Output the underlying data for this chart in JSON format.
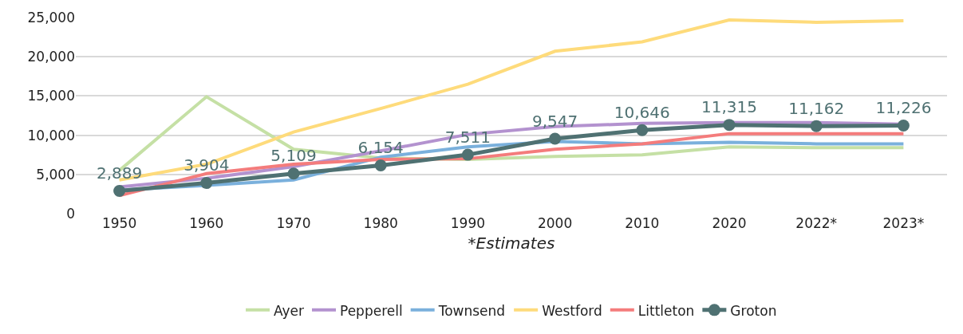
{
  "chart_data": {
    "type": "line",
    "categories": [
      "1950",
      "1960",
      "1970",
      "1980",
      "1990",
      "2000",
      "2010",
      "2020",
      "2022*",
      "2023*"
    ],
    "xlabel": "*Estimates",
    "ylim": [
      0,
      25000
    ],
    "yticks": [
      {
        "value": 0,
        "label": "0"
      },
      {
        "value": 5000,
        "label": "5,000"
      },
      {
        "value": 10000,
        "label": "10,000"
      },
      {
        "value": 15000,
        "label": "15,000"
      },
      {
        "value": 20000,
        "label": "20,000"
      },
      {
        "value": 25000,
        "label": "25,000"
      }
    ],
    "grid": "y",
    "legend": "bottom",
    "line_style": "solid",
    "series": [
      {
        "name": "Ayer",
        "color": "#c5e0a5",
        "marker": "none",
        "values": [
          5500,
          14900,
          8200,
          7100,
          6900,
          7300,
          7500,
          8500,
          8400,
          8400
        ]
      },
      {
        "name": "Pepperell",
        "color": "#b392cf",
        "marker": "none",
        "values": [
          3400,
          4500,
          6000,
          8000,
          10100,
          11100,
          11500,
          11600,
          11600,
          11400
        ]
      },
      {
        "name": "Townsend",
        "color": "#7ab0dc",
        "marker": "none",
        "values": [
          3000,
          3600,
          4300,
          7200,
          8500,
          9200,
          8900,
          9100,
          8900,
          8900
        ]
      },
      {
        "name": "Westford",
        "color": "#fedb7b",
        "marker": "none",
        "values": [
          4300,
          6300,
          10400,
          13400,
          16500,
          20700,
          21900,
          24700,
          24400,
          24600
        ]
      },
      {
        "name": "Littleton",
        "color": "#f47c7c",
        "marker": "none",
        "values": [
          2300,
          5100,
          6300,
          6900,
          7000,
          8200,
          8900,
          10200,
          10200,
          10200
        ]
      },
      {
        "name": "Groton",
        "color": "#4f7172",
        "marker": "circle",
        "values": [
          2889,
          3904,
          5109,
          6154,
          7511,
          9547,
          10646,
          11315,
          11162,
          11226
        ],
        "value_labels": [
          "2,889",
          "3,904",
          "5,109",
          "6,154",
          "7,511",
          "9,547",
          "10,646",
          "11,315",
          "11,162",
          "11,226"
        ]
      }
    ]
  }
}
